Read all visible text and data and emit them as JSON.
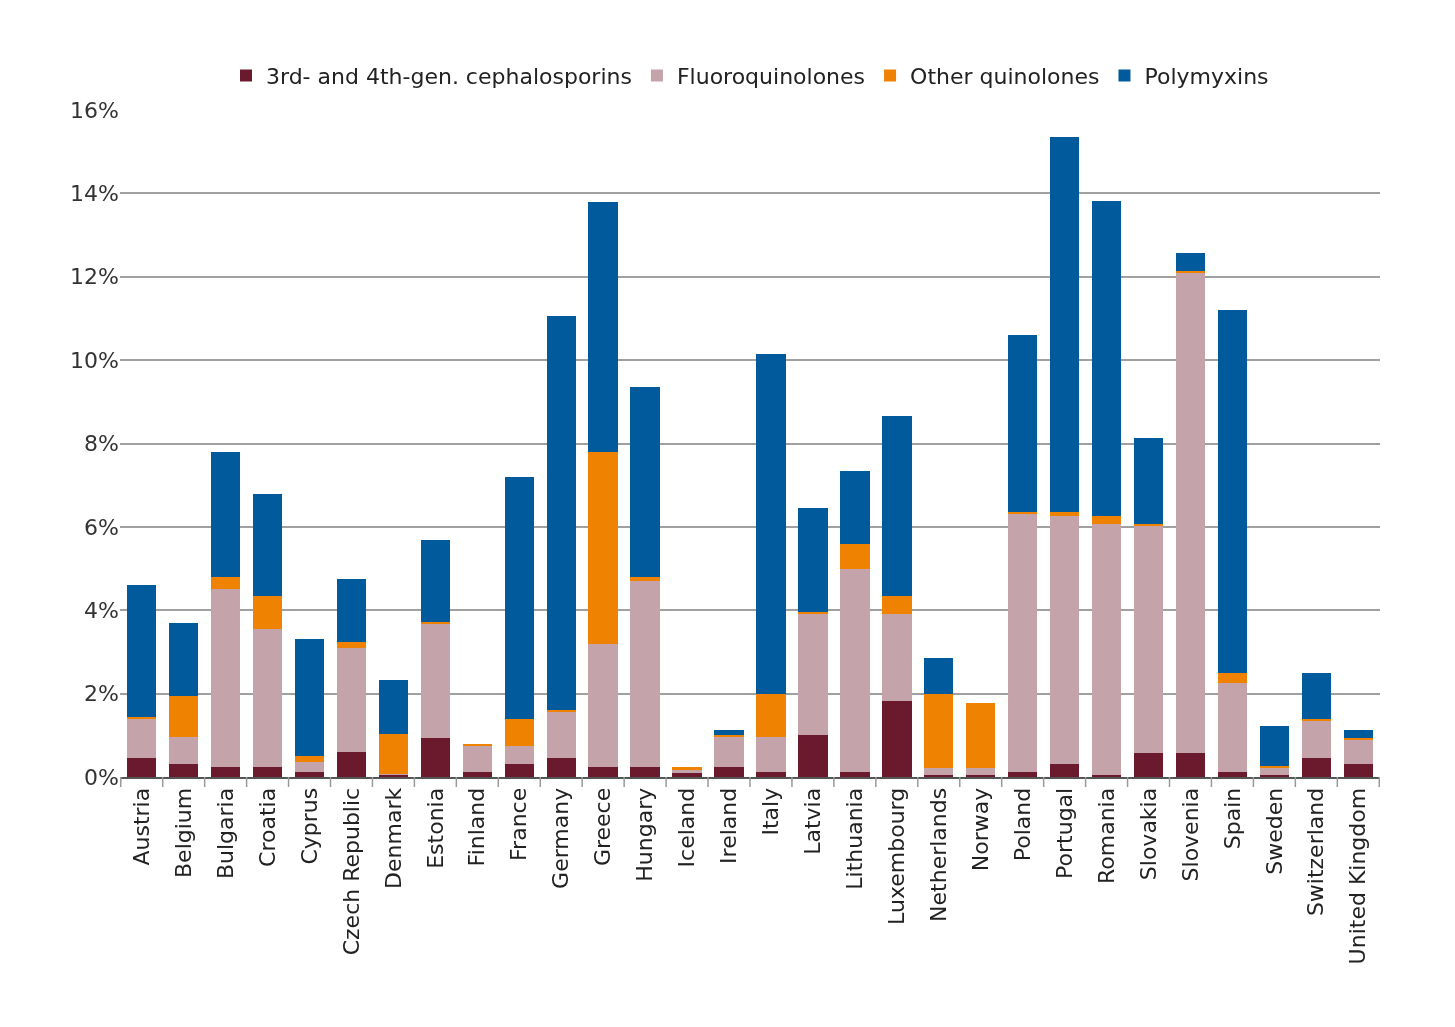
{
  "chart_data": {
    "type": "bar",
    "stacked": true,
    "categories": [
      "Austria",
      "Belgium",
      "Bulgaria",
      "Croatia",
      "Cyprus",
      "Czech Republic",
      "Denmark",
      "Estonia",
      "Finland",
      "France",
      "Germany",
      "Greece",
      "Hungary",
      "Iceland",
      "Ireland",
      "Italy",
      "Latvia",
      "Lithuania",
      "Luxembourg",
      "Netherlands",
      "Norway",
      "Poland",
      "Portugal",
      "Romania",
      "Slovakia",
      "Slovenia",
      "Spain",
      "Sweden",
      "Switzerland",
      "United Kingdom"
    ],
    "series": [
      {
        "name": "3rd- and 4th-gen. cephalosporins",
        "color": "#6b1a2e",
        "values": [
          0.45,
          0.3,
          0.25,
          0.25,
          0.12,
          0.6,
          0.05,
          0.93,
          0.12,
          0.3,
          0.45,
          0.25,
          0.25,
          0.1,
          0.25,
          0.12,
          1.0,
          0.12,
          1.83,
          0.05,
          0.05,
          0.12,
          0.32,
          0.05,
          0.58,
          0.58,
          0.12,
          0.05,
          0.45,
          0.32
        ]
      },
      {
        "name": "Fluoroquinolones",
        "color": "#c4a3aa",
        "values": [
          0.95,
          0.65,
          4.25,
          3.3,
          0.25,
          2.5,
          0.02,
          2.75,
          0.63,
          0.45,
          1.1,
          2.95,
          4.45,
          0.07,
          0.7,
          0.83,
          2.9,
          4.88,
          2.07,
          0.17,
          0.17,
          6.18,
          5.93,
          6.02,
          5.45,
          11.5,
          2.13,
          0.17,
          0.9,
          0.56
        ]
      },
      {
        "name": "Other quinolones",
        "color": "#ef8200",
        "values": [
          0.05,
          1.0,
          0.3,
          0.8,
          0.13,
          0.15,
          0.95,
          0.05,
          0.05,
          0.65,
          0.05,
          4.6,
          0.1,
          0.08,
          0.05,
          1.05,
          0.05,
          0.6,
          0.45,
          1.78,
          1.55,
          0.05,
          0.1,
          0.2,
          0.05,
          0.05,
          0.25,
          0.05,
          0.05,
          0.05
        ]
      },
      {
        "name": "Polymyxins",
        "color": "#005a9c",
        "values": [
          3.15,
          1.75,
          3.0,
          2.45,
          2.8,
          1.5,
          1.3,
          1.95,
          0,
          5.8,
          9.45,
          6.0,
          4.55,
          0,
          0.12,
          8.15,
          2.5,
          1.75,
          4.3,
          0.85,
          0,
          4.25,
          9.0,
          7.55,
          2.05,
          0.45,
          8.7,
          0.95,
          1.1,
          0.19
        ]
      }
    ],
    "ylim": [
      0,
      16
    ],
    "yticks": [
      {
        "value": 0,
        "label": "0%"
      },
      {
        "value": 2,
        "label": "2%"
      },
      {
        "value": 4,
        "label": "4%"
      },
      {
        "value": 6,
        "label": "6%"
      },
      {
        "value": 8,
        "label": "8%"
      },
      {
        "value": 10,
        "label": "10%"
      },
      {
        "value": 12,
        "label": "12%"
      },
      {
        "value": 14,
        "label": "14%"
      },
      {
        "value": 16,
        "label": "16%"
      }
    ],
    "grid": "y",
    "legend": "top"
  }
}
